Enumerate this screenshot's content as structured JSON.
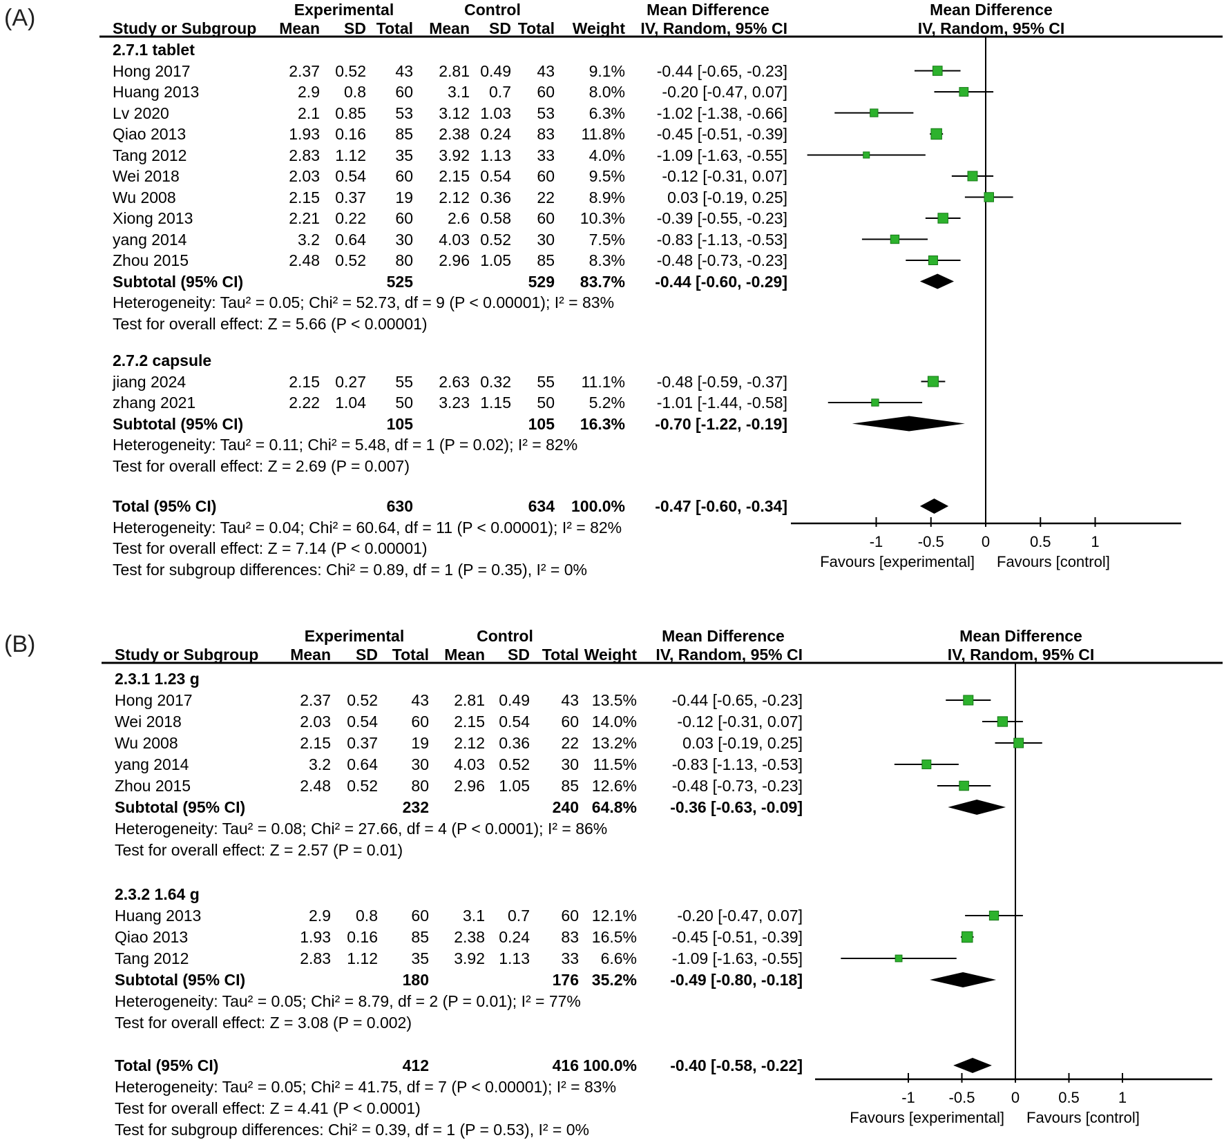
{
  "style": {
    "marker_color": "#2DB22D",
    "marker_edge": "#157815",
    "diamond_color": "#000000",
    "line_color": "#000000",
    "text_color": "#000000",
    "background": "#FFFFFF"
  },
  "chart_data": [
    {
      "type": "forest",
      "panel_label": "(A)",
      "header": {
        "group1": "Experimental",
        "group2": "Control",
        "effect_title": "Mean Difference",
        "effect_sub": "IV, Random, 95% CI",
        "study": "Study or Subgroup",
        "mean": "Mean",
        "sd": "SD",
        "total": "Total",
        "weight": "Weight"
      },
      "groups": [
        {
          "title": "2.7.1 tablet",
          "studies": [
            {
              "name": "Hong 2017",
              "mean1": "2.37",
              "sd1": "0.52",
              "n1": "43",
              "mean2": "2.81",
              "sd2": "0.49",
              "n2": "43",
              "weight": 9.1,
              "weight_text": "9.1%",
              "ci_text": "-0.44 [-0.65, -0.23]",
              "est": -0.44,
              "lo": -0.65,
              "hi": -0.23
            },
            {
              "name": "Huang 2013",
              "mean1": "2.9",
              "sd1": "0.8",
              "n1": "60",
              "mean2": "3.1",
              "sd2": "0.7",
              "n2": "60",
              "weight": 8.0,
              "weight_text": "8.0%",
              "ci_text": "-0.20 [-0.47, 0.07]",
              "est": -0.2,
              "lo": -0.47,
              "hi": 0.07
            },
            {
              "name": "Lv 2020",
              "mean1": "2.1",
              "sd1": "0.85",
              "n1": "53",
              "mean2": "3.12",
              "sd2": "1.03",
              "n2": "53",
              "weight": 6.3,
              "weight_text": "6.3%",
              "ci_text": "-1.02 [-1.38, -0.66]",
              "est": -1.02,
              "lo": -1.38,
              "hi": -0.66
            },
            {
              "name": "Qiao 2013",
              "mean1": "1.93",
              "sd1": "0.16",
              "n1": "85",
              "mean2": "2.38",
              "sd2": "0.24",
              "n2": "83",
              "weight": 11.8,
              "weight_text": "11.8%",
              "ci_text": "-0.45 [-0.51, -0.39]",
              "est": -0.45,
              "lo": -0.51,
              "hi": -0.39
            },
            {
              "name": "Tang 2012",
              "mean1": "2.83",
              "sd1": "1.12",
              "n1": "35",
              "mean2": "3.92",
              "sd2": "1.13",
              "n2": "33",
              "weight": 4.0,
              "weight_text": "4.0%",
              "ci_text": "-1.09 [-1.63, -0.55]",
              "est": -1.09,
              "lo": -1.63,
              "hi": -0.55
            },
            {
              "name": "Wei 2018",
              "mean1": "2.03",
              "sd1": "0.54",
              "n1": "60",
              "mean2": "2.15",
              "sd2": "0.54",
              "n2": "60",
              "weight": 9.5,
              "weight_text": "9.5%",
              "ci_text": "-0.12 [-0.31, 0.07]",
              "est": -0.12,
              "lo": -0.31,
              "hi": 0.07
            },
            {
              "name": "Wu 2008",
              "mean1": "2.15",
              "sd1": "0.37",
              "n1": "19",
              "mean2": "2.12",
              "sd2": "0.36",
              "n2": "22",
              "weight": 8.9,
              "weight_text": "8.9%",
              "ci_text": "0.03 [-0.19, 0.25]",
              "est": 0.03,
              "lo": -0.19,
              "hi": 0.25
            },
            {
              "name": "Xiong 2013",
              "mean1": "2.21",
              "sd1": "0.22",
              "n1": "60",
              "mean2": "2.6",
              "sd2": "0.58",
              "n2": "60",
              "weight": 10.3,
              "weight_text": "10.3%",
              "ci_text": "-0.39 [-0.55, -0.23]",
              "est": -0.39,
              "lo": -0.55,
              "hi": -0.23
            },
            {
              "name": "yang 2014",
              "mean1": "3.2",
              "sd1": "0.64",
              "n1": "30",
              "mean2": "4.03",
              "sd2": "0.52",
              "n2": "30",
              "weight": 7.5,
              "weight_text": "7.5%",
              "ci_text": "-0.83 [-1.13, -0.53]",
              "est": -0.83,
              "lo": -1.13,
              "hi": -0.53
            },
            {
              "name": "Zhou 2015",
              "mean1": "2.48",
              "sd1": "0.52",
              "n1": "80",
              "mean2": "2.96",
              "sd2": "1.05",
              "n2": "85",
              "weight": 8.3,
              "weight_text": "8.3%",
              "ci_text": "-0.48 [-0.73, -0.23]",
              "est": -0.48,
              "lo": -0.73,
              "hi": -0.23
            }
          ],
          "subtotal": {
            "label": "Subtotal (95% CI)",
            "n1": "525",
            "n2": "529",
            "weight_text": "83.7%",
            "ci_text": "-0.44 [-0.60, -0.29]",
            "est": -0.44,
            "lo": -0.6,
            "hi": -0.29
          },
          "het": "Heterogeneity: Tau² = 0.05; Chi² = 52.73, df = 9 (P < 0.00001); I² = 83%",
          "test": "Test for overall effect: Z = 5.66 (P < 0.00001)"
        },
        {
          "title": "2.7.2 capsule",
          "studies": [
            {
              "name": "jiang 2024",
              "mean1": "2.15",
              "sd1": "0.27",
              "n1": "55",
              "mean2": "2.63",
              "sd2": "0.32",
              "n2": "55",
              "weight": 11.1,
              "weight_text": "11.1%",
              "ci_text": "-0.48 [-0.59, -0.37]",
              "est": -0.48,
              "lo": -0.59,
              "hi": -0.37
            },
            {
              "name": "zhang 2021",
              "mean1": "2.22",
              "sd1": "1.04",
              "n1": "50",
              "mean2": "3.23",
              "sd2": "1.15",
              "n2": "50",
              "weight": 5.2,
              "weight_text": "5.2%",
              "ci_text": "-1.01 [-1.44, -0.58]",
              "est": -1.01,
              "lo": -1.44,
              "hi": -0.58
            }
          ],
          "subtotal": {
            "label": "Subtotal (95% CI)",
            "n1": "105",
            "n2": "105",
            "weight_text": "16.3%",
            "ci_text": "-0.70 [-1.22, -0.19]",
            "est": -0.7,
            "lo": -1.22,
            "hi": -0.19
          },
          "het": "Heterogeneity: Tau² = 0.11; Chi² = 5.48, df = 1 (P = 0.02); I² = 82%",
          "test": "Test for overall effect: Z = 2.69 (P = 0.007)"
        }
      ],
      "total": {
        "label": "Total (95% CI)",
        "n1": "630",
        "n2": "634",
        "weight_text": "100.0%",
        "ci_text": "-0.47 [-0.60, -0.34]",
        "est": -0.47,
        "lo": -0.6,
        "hi": -0.34
      },
      "total_het": "Heterogeneity: Tau² = 0.04; Chi² = 60.64, df = 11 (P < 0.00001); I² = 82%",
      "total_test": "Test for overall effect: Z = 7.14 (P < 0.00001)",
      "subgroup_test": "Test for subgroup differences: Chi² = 0.89, df = 1 (P = 0.35), I² = 0%",
      "axis": {
        "tick_labels": [
          "-1",
          "-0.5",
          "0",
          "0.5",
          "1"
        ],
        "tick_values": [
          -1,
          -0.5,
          0,
          0.5,
          1
        ],
        "favours_left": "Favours [experimental]",
        "favours_right": "Favours [control]"
      }
    },
    {
      "type": "forest",
      "panel_label": "(B)",
      "header": {
        "group1": "Experimental",
        "group2": "Control",
        "effect_title": "Mean Difference",
        "effect_sub": "IV, Random, 95% CI",
        "study": "Study or Subgroup",
        "mean": "Mean",
        "sd": "SD",
        "total": "Total",
        "weight": "Weight"
      },
      "groups": [
        {
          "title": "2.3.1 1.23 g",
          "studies": [
            {
              "name": "Hong 2017",
              "mean1": "2.37",
              "sd1": "0.52",
              "n1": "43",
              "mean2": "2.81",
              "sd2": "0.49",
              "n2": "43",
              "weight": 13.5,
              "weight_text": "13.5%",
              "ci_text": "-0.44 [-0.65, -0.23]",
              "est": -0.44,
              "lo": -0.65,
              "hi": -0.23
            },
            {
              "name": "Wei 2018",
              "mean1": "2.03",
              "sd1": "0.54",
              "n1": "60",
              "mean2": "2.15",
              "sd2": "0.54",
              "n2": "60",
              "weight": 14.0,
              "weight_text": "14.0%",
              "ci_text": "-0.12 [-0.31, 0.07]",
              "est": -0.12,
              "lo": -0.31,
              "hi": 0.07
            },
            {
              "name": "Wu 2008",
              "mean1": "2.15",
              "sd1": "0.37",
              "n1": "19",
              "mean2": "2.12",
              "sd2": "0.36",
              "n2": "22",
              "weight": 13.2,
              "weight_text": "13.2%",
              "ci_text": "0.03 [-0.19, 0.25]",
              "est": 0.03,
              "lo": -0.19,
              "hi": 0.25
            },
            {
              "name": "yang 2014",
              "mean1": "3.2",
              "sd1": "0.64",
              "n1": "30",
              "mean2": "4.03",
              "sd2": "0.52",
              "n2": "30",
              "weight": 11.5,
              "weight_text": "11.5%",
              "ci_text": "-0.83 [-1.13, -0.53]",
              "est": -0.83,
              "lo": -1.13,
              "hi": -0.53
            },
            {
              "name": "Zhou 2015",
              "mean1": "2.48",
              "sd1": "0.52",
              "n1": "80",
              "mean2": "2.96",
              "sd2": "1.05",
              "n2": "85",
              "weight": 12.6,
              "weight_text": "12.6%",
              "ci_text": "-0.48 [-0.73, -0.23]",
              "est": -0.48,
              "lo": -0.73,
              "hi": -0.23
            }
          ],
          "subtotal": {
            "label": "Subtotal (95% CI)",
            "n1": "232",
            "n2": "240",
            "weight_text": "64.8%",
            "ci_text": "-0.36 [-0.63, -0.09]",
            "est": -0.36,
            "lo": -0.63,
            "hi": -0.09
          },
          "het": "Heterogeneity: Tau² = 0.08; Chi² = 27.66, df = 4 (P < 0.0001); I² = 86%",
          "test": "Test for overall effect: Z = 2.57 (P = 0.01)"
        },
        {
          "title": "2.3.2 1.64 g",
          "studies": [
            {
              "name": "Huang 2013",
              "mean1": "2.9",
              "sd1": "0.8",
              "n1": "60",
              "mean2": "3.1",
              "sd2": "0.7",
              "n2": "60",
              "weight": 12.1,
              "weight_text": "12.1%",
              "ci_text": "-0.20 [-0.47, 0.07]",
              "est": -0.2,
              "lo": -0.47,
              "hi": 0.07
            },
            {
              "name": "Qiao 2013",
              "mean1": "1.93",
              "sd1": "0.16",
              "n1": "85",
              "mean2": "2.38",
              "sd2": "0.24",
              "n2": "83",
              "weight": 16.5,
              "weight_text": "16.5%",
              "ci_text": "-0.45 [-0.51, -0.39]",
              "est": -0.45,
              "lo": -0.51,
              "hi": -0.39
            },
            {
              "name": "Tang 2012",
              "mean1": "2.83",
              "sd1": "1.12",
              "n1": "35",
              "mean2": "3.92",
              "sd2": "1.13",
              "n2": "33",
              "weight": 6.6,
              "weight_text": "6.6%",
              "ci_text": "-1.09 [-1.63, -0.55]",
              "est": -1.09,
              "lo": -1.63,
              "hi": -0.55
            }
          ],
          "subtotal": {
            "label": "Subtotal (95% CI)",
            "n1": "180",
            "n2": "176",
            "weight_text": "35.2%",
            "ci_text": "-0.49 [-0.80, -0.18]",
            "est": -0.49,
            "lo": -0.8,
            "hi": -0.18
          },
          "het": "Heterogeneity: Tau² = 0.05; Chi² = 8.79, df = 2 (P = 0.01); I² = 77%",
          "test": "Test for overall effect: Z = 3.08 (P = 0.002)"
        }
      ],
      "total": {
        "label": "Total (95% CI)",
        "n1": "412",
        "n2": "416",
        "weight_text": "100.0%",
        "ci_text": "-0.40 [-0.58, -0.22]",
        "est": -0.4,
        "lo": -0.58,
        "hi": -0.22
      },
      "total_het": "Heterogeneity: Tau² = 0.05; Chi² = 41.75, df = 7 (P < 0.00001); I² = 83%",
      "total_test": "Test for overall effect: Z = 4.41 (P < 0.0001)",
      "subgroup_test": "Test for subgroup differences: Chi² = 0.39, df = 1 (P = 0.53), I² = 0%",
      "axis": {
        "tick_labels": [
          "-1",
          "-0.5",
          "0",
          "0.5",
          "1"
        ],
        "tick_values": [
          -1,
          -0.5,
          0,
          0.5,
          1
        ],
        "favours_left": "Favours [experimental]",
        "favours_right": "Favours [control]"
      }
    }
  ]
}
